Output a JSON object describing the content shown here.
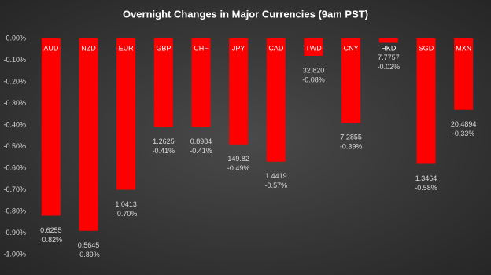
{
  "chart_data": {
    "type": "bar",
    "title": "Overnight Changes in Major Currencies (9am PST)",
    "categories": [
      "AUD",
      "NZD",
      "EUR",
      "GBP",
      "CHF",
      "JPY",
      "CAD",
      "TWD",
      "CNY",
      "HKD",
      "SGD",
      "MXN"
    ],
    "values": [
      -0.82,
      -0.89,
      -0.7,
      -0.41,
      -0.41,
      -0.49,
      -0.57,
      -0.08,
      -0.39,
      -0.02,
      -0.58,
      -0.33
    ],
    "value_labels": [
      "-0.82%",
      "-0.89%",
      "-0.70%",
      "-0.41%",
      "-0.41%",
      "-0.49%",
      "-0.57%",
      "-0.08%",
      "-0.39%",
      "-0.02%",
      "-0.58%",
      "-0.33%"
    ],
    "rates": [
      "0.6255",
      "0.5645",
      "1.0413",
      "1.2625",
      "0.8984",
      "149.82",
      "1.4419",
      "32.820",
      "7.2855",
      "7.7757",
      "1.3464",
      "20.4894"
    ],
    "color": "#ff0000",
    "ylim": [
      -1.0,
      0
    ],
    "yticks": [
      {
        "value": 0,
        "label": "0.00%"
      },
      {
        "value": -0.1,
        "label": "-0.10%"
      },
      {
        "value": -0.2,
        "label": "-0.20%"
      },
      {
        "value": -0.3,
        "label": "-0.30%"
      },
      {
        "value": -0.4,
        "label": "-0.40%"
      },
      {
        "value": -0.5,
        "label": "-0.50%"
      },
      {
        "value": -0.6,
        "label": "-0.60%"
      },
      {
        "value": -0.7,
        "label": "-0.70%"
      },
      {
        "value": -0.8,
        "label": "-0.80%"
      },
      {
        "value": -0.9,
        "label": "-0.90%"
      },
      {
        "value": -1.0,
        "label": "-1.00%"
      }
    ]
  }
}
